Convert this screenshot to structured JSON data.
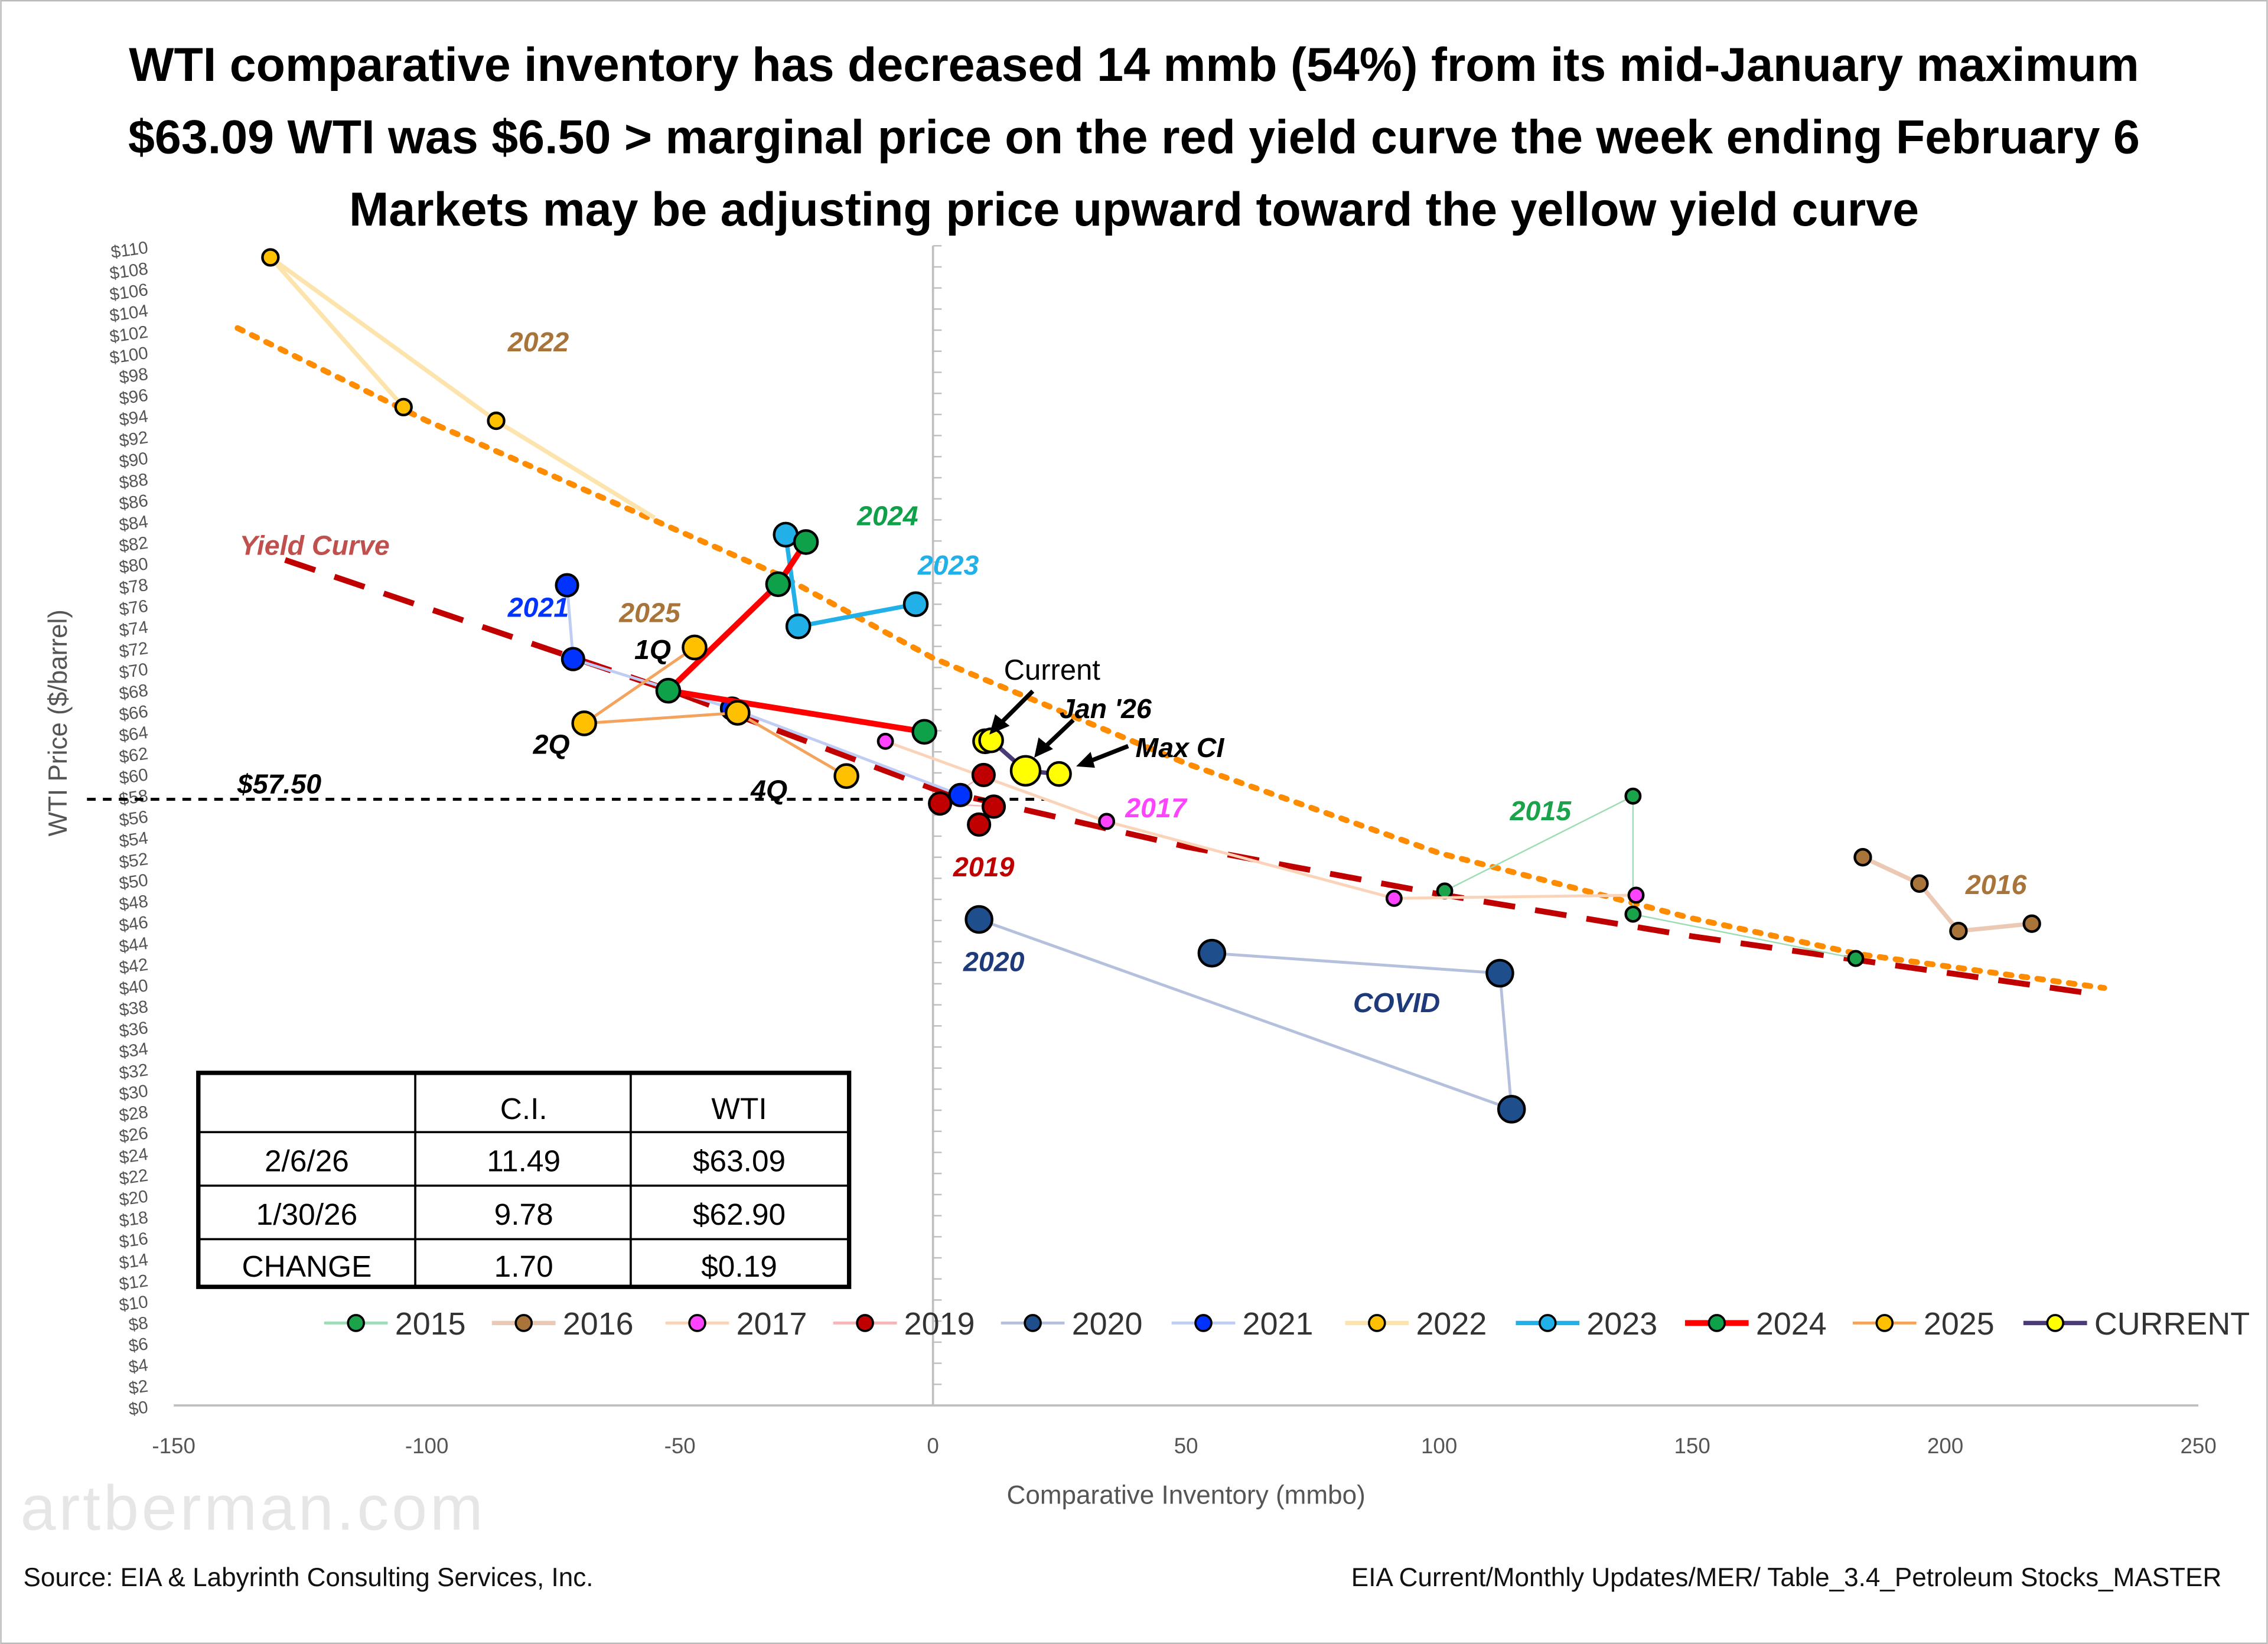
{
  "chart_data": {
    "type": "scatter",
    "title": [
      "WTI comparative inventory has decreased 14 mmb (54%) from its mid-January maximum",
      "$63.09 WTI was $6.50 > marginal price on the red yield curve the week ending February 6",
      "Markets may be adjusting price upward toward the yellow yield curve"
    ],
    "xlabel": "Comparative Inventory (mmbo)",
    "ylabel": "WTI Price ($/barrel)",
    "xlim": [
      -150,
      250
    ],
    "ylim": [
      0,
      110
    ],
    "x_ticks": [
      -150,
      -100,
      -50,
      0,
      50,
      100,
      150,
      200,
      250
    ],
    "y_tick_step": 2,
    "y_tick_prefix": "$",
    "grid": false,
    "legend_position": "bottom",
    "reference_line": {
      "y": 57.5,
      "label": "$57.50",
      "color": "#000000"
    },
    "series": [
      {
        "name": "2015",
        "color": "#1aa34a",
        "line": "#9edcb5",
        "lw": 1,
        "r": 5,
        "points": [
          [
            101.1,
            48.8
          ],
          [
            138.3,
            57.8
          ],
          [
            138.3,
            46.6
          ],
          [
            182.3,
            42.4
          ]
        ]
      },
      {
        "name": "2016",
        "color": "#a8743a",
        "line": "#ecc9b4",
        "lw": 3,
        "r": 5.5,
        "points": [
          [
            183.7,
            52.0
          ],
          [
            194.9,
            49.5
          ],
          [
            202.6,
            45.0
          ],
          [
            217.1,
            45.7
          ]
        ]
      },
      {
        "name": "2017",
        "color": "#ff44ff",
        "line": "#fbd3b8",
        "lw": 2,
        "r": 5,
        "points": [
          [
            -9.4,
            63.0
          ],
          [
            34.3,
            55.4
          ],
          [
            91.1,
            48.1
          ],
          [
            138.9,
            48.4
          ]
        ]
      },
      {
        "name": "2019",
        "color": "#c00000",
        "line": "#f4b6b6",
        "lw": 1,
        "r": 7.5,
        "points": [
          [
            10,
            59.8
          ],
          [
            1.4,
            57.1
          ],
          [
            12,
            56.8
          ],
          [
            9.1,
            55.1
          ]
        ]
      },
      {
        "name": "2020",
        "color": "#1f4e8c",
        "line": "#b4c0dc",
        "lw": 2,
        "r": 9,
        "points": [
          [
            9.1,
            46.1
          ],
          [
            114.3,
            28.1
          ],
          [
            112.0,
            41.0
          ],
          [
            55.1,
            42.9
          ]
        ]
      },
      {
        "name": "2021",
        "color": "#0033ff",
        "line": "#bfcdf5",
        "lw": 2,
        "r": 7.5,
        "points": [
          [
            -72.3,
            77.8
          ],
          [
            -71.1,
            70.8
          ],
          [
            -39.7,
            66.1
          ],
          [
            5.4,
            57.9
          ]
        ]
      },
      {
        "name": "2022",
        "color": "#ffc000",
        "line": "#fde4ad",
        "lw": 3,
        "r": 5.5,
        "points": [
          [
            -104.6,
            94.7
          ],
          [
            -130.9,
            108.9
          ],
          [
            -86.3,
            93.4
          ],
          [
            -55.0,
            84.2
          ]
        ]
      },
      {
        "name": "2023",
        "color": "#21b1e8",
        "line": "#21b1e8",
        "lw": 3,
        "r": 8,
        "points": [
          [
            -29.1,
            82.6
          ],
          [
            -26.6,
            73.9
          ],
          [
            -3.4,
            76.0
          ]
        ]
      },
      {
        "name": "2024",
        "color": "#0fa14a",
        "line": "#ff0000",
        "lw": 4,
        "r": 8,
        "points": [
          [
            -25.1,
            81.9
          ],
          [
            -30.6,
            77.9
          ],
          [
            -52.3,
            67.8
          ],
          [
            -1.7,
            63.9
          ]
        ]
      },
      {
        "name": "2025",
        "color": "#ffc000",
        "line": "#f4a35c",
        "lw": 2,
        "r": 8,
        "points": [
          [
            -47.1,
            71.9
          ],
          [
            -68.9,
            64.7
          ],
          [
            -38.6,
            65.7
          ],
          [
            -17.1,
            59.7
          ]
        ]
      },
      {
        "name": "CURRENT",
        "color": "#ffff00",
        "line": "#4b3a7a",
        "lw": 3,
        "r": 8,
        "points": [
          [
            10.3,
            63.0
          ],
          [
            11.49,
            63.09
          ],
          [
            18.3,
            60.2
          ],
          [
            24.9,
            59.9
          ]
        ]
      }
    ],
    "yield_curves": [
      {
        "label": "Yield Curve",
        "color": "#c00000",
        "style": "dashed",
        "points": [
          [
            -128,
            80.2
          ],
          [
            -50,
            67.5
          ],
          [
            0,
            58.5
          ],
          [
            50,
            53
          ],
          [
            100,
            48.5
          ],
          [
            150,
            44.5
          ],
          [
            227,
            39.2
          ]
        ]
      },
      {
        "label": "",
        "color": "#ff8c00",
        "style": "dotted",
        "points": [
          [
            -137.4,
            102.2
          ],
          [
            -100,
            93.4
          ],
          [
            -30,
            78.7
          ],
          [
            0,
            70.9
          ],
          [
            50,
            60.9
          ],
          [
            100,
            52.4
          ],
          [
            150,
            46.2
          ],
          [
            183,
            42.8
          ],
          [
            231.4,
            39.6
          ]
        ]
      }
    ],
    "annotations": [
      {
        "text": "2022",
        "color": "#a8743a",
        "at": [
          -84,
          100
        ]
      },
      {
        "text": "2024",
        "color": "#0fa14a",
        "at": [
          -15,
          83.5
        ]
      },
      {
        "text": "2023",
        "color": "#21b1e8",
        "at": [
          -3,
          78.8
        ]
      },
      {
        "text": "Yield Curve",
        "color": "#c0504d",
        "at": [
          -137,
          80.7
        ]
      },
      {
        "text": "2021",
        "color": "#0033ff",
        "at": [
          -84,
          74.8
        ]
      },
      {
        "text": "2025",
        "color": "#a8743a",
        "at": [
          -62,
          74.3
        ]
      },
      {
        "text": "1Q",
        "color": "#000000",
        "at": [
          -59,
          70.8
        ]
      },
      {
        "text": "2Q",
        "color": "#000000",
        "at": [
          -79,
          61.8
        ]
      },
      {
        "text": "4Q",
        "color": "#000000",
        "at": [
          -36,
          57.5
        ]
      },
      {
        "text": "Jan '26",
        "color": "#000000",
        "at": [
          25,
          65.2
        ]
      },
      {
        "text": "Max CI",
        "color": "#000000",
        "at": [
          40,
          61.5
        ]
      },
      {
        "text": "2017",
        "color": "#ff44ff",
        "at": [
          38,
          55.8
        ]
      },
      {
        "text": "2019",
        "color": "#c00000",
        "at": [
          4,
          50.2
        ]
      },
      {
        "text": "2020",
        "color": "#1f3a7a",
        "at": [
          6,
          41.2
        ]
      },
      {
        "text": "COVID",
        "color": "#1f3a7a",
        "at": [
          83,
          37.3
        ]
      },
      {
        "text": "2015",
        "color": "#1aa34a",
        "at": [
          114,
          55.5
        ]
      },
      {
        "text": "2016",
        "color": "#a8743a",
        "at": [
          204,
          48.5
        ]
      }
    ],
    "current_label": "Current",
    "table": {
      "headers": [
        "",
        "C.I.",
        "WTI"
      ],
      "rows": [
        [
          "2/6/26",
          "11.49",
          "$63.09"
        ],
        [
          "1/30/26",
          "9.78",
          "$62.90"
        ],
        [
          "CHANGE",
          "1.70",
          "$0.19"
        ]
      ]
    }
  },
  "watermark": "artberman.com",
  "footer": {
    "source_left": "Source:  EIA  & Labyrinth Consulting Services, Inc.",
    "source_right": "EIA Current/Monthly Updates/MER/ Table_3.4_Petroleum Stocks_MASTER"
  }
}
